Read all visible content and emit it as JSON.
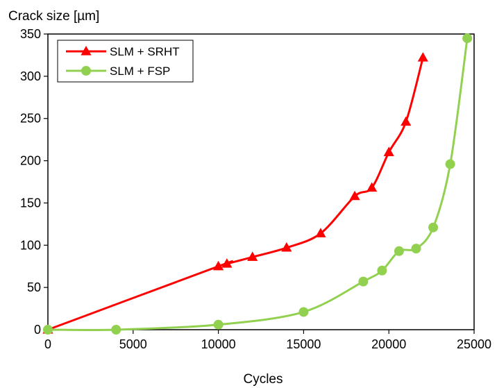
{
  "chart_data": {
    "type": "line",
    "title": "",
    "ylabel": "Crack size [µm]",
    "xlabel": "Cycles",
    "xlim": [
      0,
      25000
    ],
    "ylim": [
      0,
      350
    ],
    "x_ticks": [
      0,
      5000,
      10000,
      15000,
      20000,
      25000
    ],
    "y_ticks": [
      0,
      50,
      100,
      150,
      200,
      250,
      300,
      350
    ],
    "x_tick_labels": [
      "0",
      "5000",
      "10000",
      "15000",
      "20000",
      "25000"
    ],
    "y_tick_labels": [
      "0",
      "50",
      "100",
      "150",
      "200",
      "250",
      "300",
      "350"
    ],
    "grid": false,
    "legend_position": "top-left",
    "series": [
      {
        "name": "SLM + SRHT",
        "color": "#ff0000",
        "marker": "triangle",
        "x": [
          0,
          10000,
          10500,
          12000,
          14000,
          16000,
          18000,
          19000,
          20000,
          21000,
          22000
        ],
        "y": [
          0,
          75,
          78,
          86,
          97,
          114,
          158,
          168,
          210,
          246,
          322
        ]
      },
      {
        "name": "SLM + FSP",
        "color": "#92d050",
        "marker": "circle",
        "x": [
          0,
          4000,
          10000,
          15000,
          18500,
          19600,
          20600,
          21600,
          22600,
          23600,
          24600
        ],
        "y": [
          0,
          0,
          6,
          21,
          57,
          70,
          93,
          96,
          121,
          196,
          345
        ]
      }
    ]
  }
}
